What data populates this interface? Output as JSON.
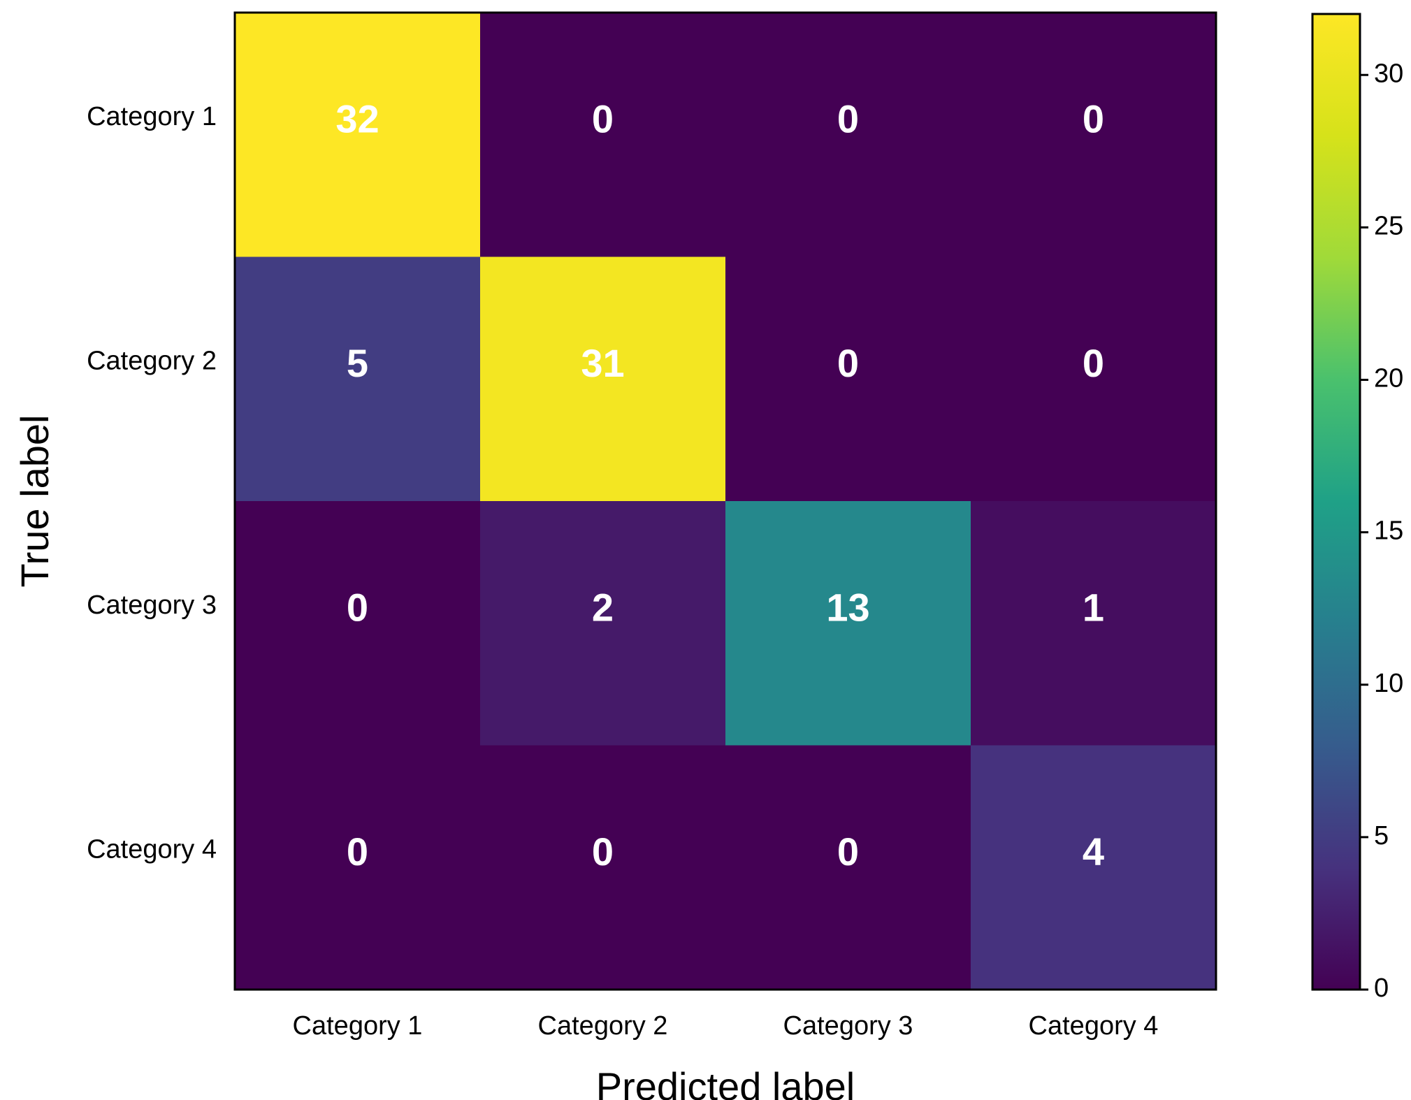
{
  "chart_data": {
    "type": "heatmap",
    "title": "",
    "xlabel": "Predicted label",
    "ylabel": "True label",
    "x_categories": [
      "Category 1",
      "Category 2",
      "Category 3",
      "Category 4"
    ],
    "y_categories": [
      "Category 1",
      "Category 2",
      "Category 3",
      "Category 4"
    ],
    "matrix": [
      [
        32,
        0,
        0,
        0
      ],
      [
        5,
        31,
        0,
        0
      ],
      [
        0,
        2,
        13,
        1
      ],
      [
        0,
        0,
        0,
        4
      ]
    ],
    "colormap": "viridis",
    "colorbar": {
      "range": [
        0,
        32
      ],
      "ticks": [
        0,
        5,
        10,
        15,
        20,
        25,
        30
      ],
      "tick_labels": [
        "0",
        "5",
        "10",
        "15",
        "20",
        "25",
        "30"
      ]
    },
    "cell_text_color": "#ffffff",
    "grid": false
  }
}
